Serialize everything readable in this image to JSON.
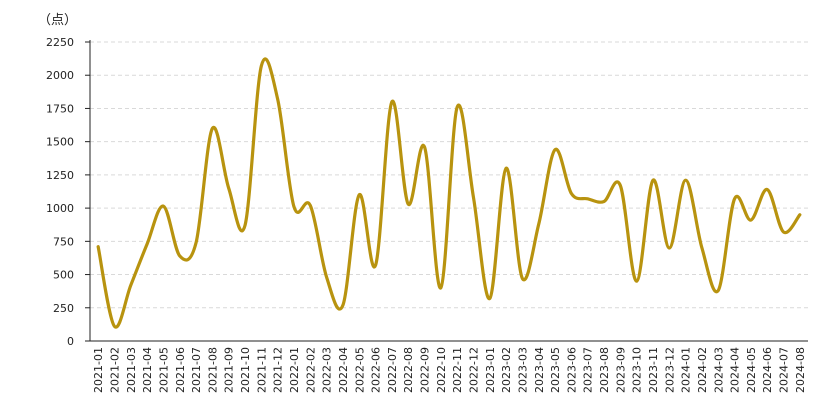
{
  "chart_data": {
    "type": "line",
    "unit_label": "（点）",
    "categories": [
      "2021-01",
      "2021-02",
      "2021-03",
      "2021-04",
      "2021-05",
      "2021-06",
      "2021-07",
      "2021-08",
      "2021-09",
      "2021-10",
      "2021-11",
      "2021-12",
      "2022-01",
      "2022-02",
      "2022-03",
      "2022-04",
      "2022-05",
      "2022-06",
      "2022-07",
      "2022-08",
      "2022-09",
      "2022-10",
      "2022-11",
      "2022-12",
      "2023-01",
      "2023-02",
      "2023-03",
      "2023-04",
      "2023-05",
      "2023-06",
      "2023-07",
      "2023-08",
      "2023-09",
      "2023-10",
      "2023-11",
      "2023-12",
      "2024-01",
      "2024-02",
      "2024-03",
      "2024-04",
      "2024-05",
      "2024-06",
      "2024-07",
      "2024-08"
    ],
    "yticks": [
      "0",
      "250",
      "500",
      "750",
      "1000",
      "1250",
      "1500",
      "1750",
      "2000",
      "2250"
    ],
    "ylim": [
      0,
      2250
    ],
    "grid": true,
    "series": [
      {
        "color": "#B8930F",
        "values": [
          710,
          110,
          420,
          730,
          1015,
          640,
          740,
          1600,
          1150,
          870,
          2070,
          1820,
          1010,
          1020,
          480,
          270,
          1100,
          570,
          1800,
          1030,
          1460,
          400,
          1760,
          1080,
          320,
          1300,
          470,
          880,
          1440,
          1110,
          1070,
          1050,
          1170,
          450,
          1210,
          700,
          1210,
          700,
          380,
          1070,
          910,
          1140,
          820,
          950
        ]
      }
    ]
  }
}
